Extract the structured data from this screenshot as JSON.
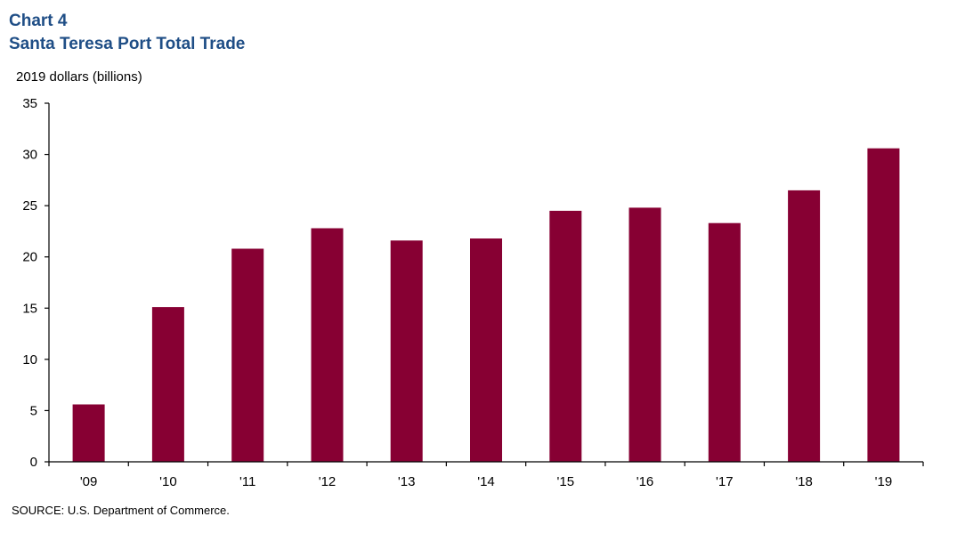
{
  "header": {
    "chart_number": "Chart 4",
    "title": "Santa Teresa Port Total Trade"
  },
  "axis": {
    "y_label": "2019 dollars  (billions)"
  },
  "footer": {
    "source": "SOURCE:  U.S. Department of Commerce."
  },
  "colors": {
    "bar": "#870033",
    "title": "#1f4e86"
  },
  "chart_data": {
    "type": "bar",
    "title": "Santa Teresa Port Total Trade",
    "subtitle": "Chart 4",
    "xlabel": "",
    "ylabel": "2019 dollars (billions)",
    "categories": [
      "'09",
      "'10",
      "'11",
      "'12",
      "'13",
      "'14",
      "'15",
      "'16",
      "'17",
      "'18",
      "'19"
    ],
    "values": [
      5.6,
      15.1,
      20.8,
      22.8,
      21.6,
      21.8,
      24.5,
      24.8,
      23.3,
      26.5,
      30.6
    ],
    "ylim": [
      0,
      35
    ],
    "yticks": [
      0,
      5,
      10,
      15,
      20,
      25,
      30,
      35
    ],
    "grid": false,
    "legend": null,
    "source": "SOURCE: U.S. Department of Commerce."
  }
}
